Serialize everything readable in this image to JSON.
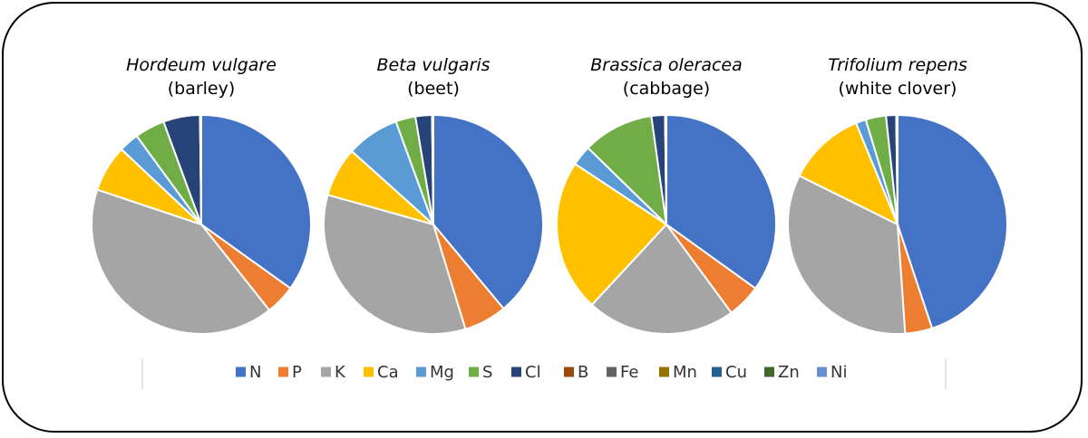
{
  "chart_data": {
    "type": "pie",
    "legend_position": "bottom",
    "categories": [
      "N",
      "P",
      "K",
      "Ca",
      "Mg",
      "S",
      "Cl",
      "B",
      "Fe",
      "Mn",
      "Cu",
      "Zn",
      "Ni"
    ],
    "colors": [
      "#4472C4",
      "#ED7D31",
      "#A5A5A5",
      "#FFC000",
      "#5B9BD5",
      "#70AD47",
      "#264478",
      "#9E480E",
      "#636363",
      "#997300",
      "#255E91",
      "#43682B",
      "#698ED0"
    ],
    "charts": [
      {
        "species": "Hordeum vulgare",
        "common": "(barley)",
        "values": [
          35.5,
          4.5,
          41.5,
          7.0,
          3.0,
          4.5,
          5.5,
          0.01,
          0.1,
          0.05,
          0.01,
          0.02,
          0.0
        ]
      },
      {
        "species": "Beta vulgaris",
        "common": "(beet)",
        "values": [
          40.0,
          6.5,
          35.0,
          7.5,
          8.0,
          3.0,
          2.5,
          0.02,
          0.1,
          0.05,
          0.01,
          0.02,
          0.0
        ]
      },
      {
        "species": "Brassica oleracea",
        "common": "(cabbage)",
        "values": [
          35.0,
          5.0,
          22.0,
          22.5,
          3.0,
          10.5,
          2.0,
          0.02,
          0.1,
          0.05,
          0.01,
          0.02,
          0.0
        ]
      },
      {
        "species": "Trifolium repens",
        "common": "(white clover)",
        "values": [
          45.0,
          4.0,
          33.5,
          11.5,
          1.5,
          3.0,
          1.5,
          0.02,
          0.1,
          0.05,
          0.01,
          0.02,
          0.0
        ]
      }
    ]
  }
}
